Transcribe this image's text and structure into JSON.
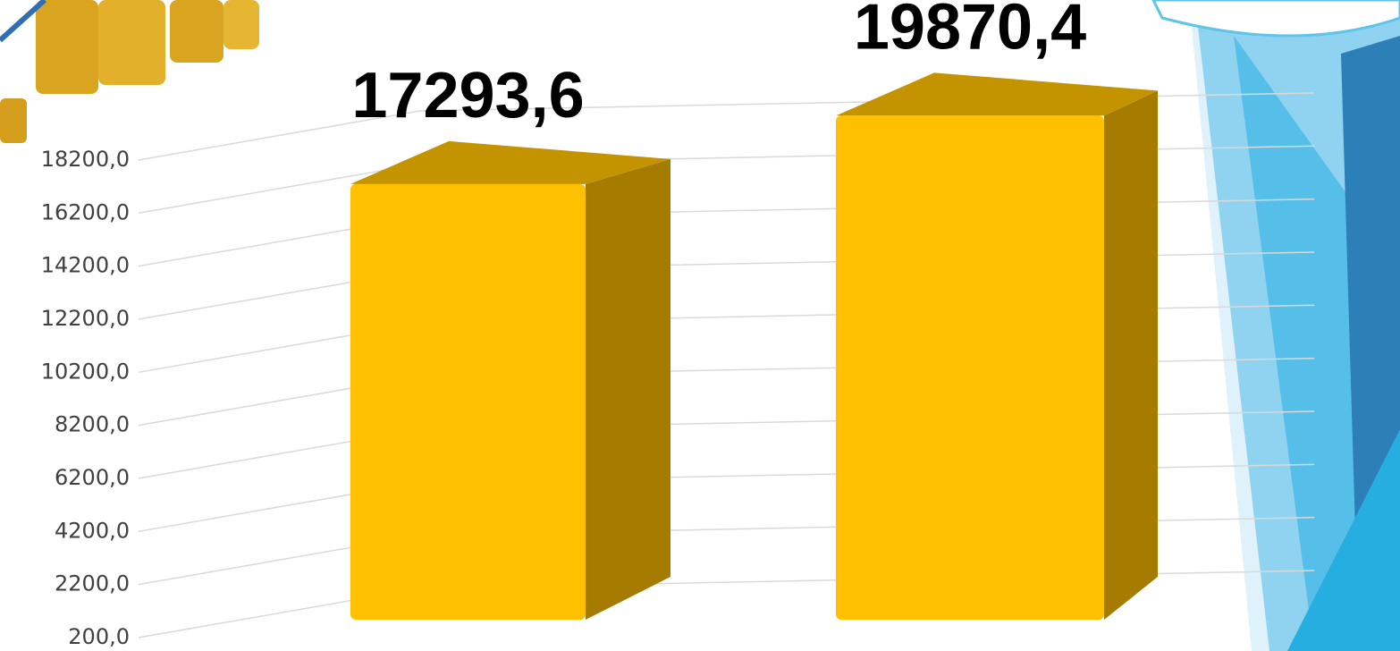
{
  "chart_data": {
    "type": "bar3d",
    "categories": [
      null,
      null
    ],
    "values": [
      17293.6,
      19870.4
    ],
    "value_labels": [
      "17293,6",
      "19870,4"
    ],
    "color": "#ffc000",
    "ylim": [
      200,
      24400
    ],
    "yticks": [
      {
        "value": 200,
        "label": "200,0"
      },
      {
        "value": 2200,
        "label": "2200,0"
      },
      {
        "value": 4200,
        "label": "4200,0"
      },
      {
        "value": 6200,
        "label": "6200,0"
      },
      {
        "value": 8200,
        "label": "8200,0"
      },
      {
        "value": 10200,
        "label": "10200,0"
      },
      {
        "value": 12200,
        "label": "12200,0"
      },
      {
        "value": 14200,
        "label": "14200,0"
      },
      {
        "value": 16200,
        "label": "16200,0"
      },
      {
        "value": 18200,
        "label": "18200,0"
      }
    ],
    "grid": true
  }
}
